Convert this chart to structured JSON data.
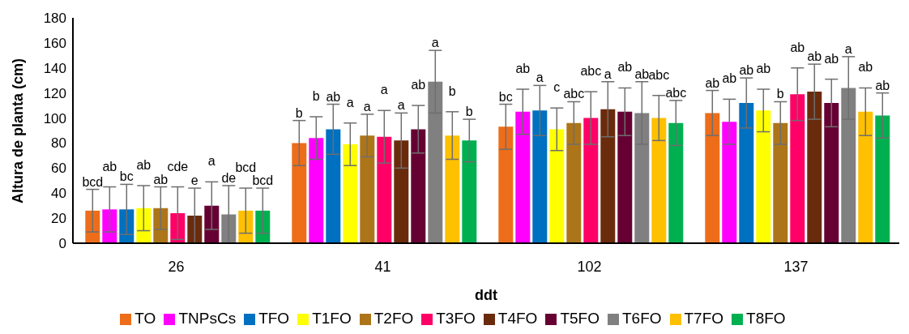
{
  "chart_data": {
    "type": "bar",
    "xlabel": "ddt",
    "ylabel": "Altura de planta (cm)",
    "categories": [
      "26",
      "41",
      "102",
      "137"
    ],
    "ylim": [
      0,
      180
    ],
    "yticks": [
      0,
      20,
      40,
      60,
      80,
      100,
      120,
      140,
      160,
      180
    ],
    "grid": false,
    "legend": "bottom",
    "series": [
      {
        "name": "TO",
        "color": "#ed6d1a",
        "values": [
          26,
          80,
          93,
          104
        ],
        "errors": [
          17,
          18,
          18,
          18
        ],
        "value_labels": [
          "bcd",
          "b",
          "bc",
          "ab"
        ]
      },
      {
        "name": "TNPsCs",
        "color": "#ff00ff",
        "values": [
          27,
          84,
          105,
          97
        ],
        "errors": [
          18,
          17,
          18,
          18
        ],
        "value_labels": [
          "ab",
          "b",
          "ab",
          "ab"
        ]
      },
      {
        "name": "TFO",
        "color": "#0070c0",
        "values": [
          27,
          91,
          106,
          112
        ],
        "errors": [
          20,
          20,
          20,
          20
        ],
        "value_labels": [
          "bc",
          "ab",
          "a",
          "ab"
        ]
      },
      {
        "name": "T1FO",
        "color": "#ffff00",
        "values": [
          28,
          79,
          91,
          106
        ],
        "errors": [
          18,
          17,
          17,
          17
        ],
        "value_labels": [
          "ab",
          "a",
          "c",
          "ab"
        ]
      },
      {
        "name": "T2FO",
        "color": "#ad7519",
        "values": [
          28,
          86,
          96,
          96
        ],
        "errors": [
          17,
          17,
          17,
          17
        ],
        "value_labels": [
          "ab",
          "a",
          "abc",
          "b"
        ]
      },
      {
        "name": "T3FO",
        "color": "#ff0066",
        "values": [
          24,
          85,
          100,
          119
        ],
        "errors": [
          21,
          21,
          21,
          21
        ],
        "value_labels": [
          "cde",
          "a",
          "abc",
          "ab"
        ]
      },
      {
        "name": "T4FO",
        "color": "#6a2b0d",
        "values": [
          22,
          82,
          107,
          121
        ],
        "errors": [
          22,
          22,
          22,
          22
        ],
        "value_labels": [
          "e",
          "a",
          "a",
          "ab"
        ]
      },
      {
        "name": "T5FO",
        "color": "#660033",
        "values": [
          30,
          91,
          105,
          112
        ],
        "errors": [
          19,
          19,
          19,
          19
        ],
        "value_labels": [
          "a",
          "ab",
          "ab",
          "ab"
        ]
      },
      {
        "name": "T6FO",
        "color": "#808080",
        "values": [
          23,
          129,
          104,
          124
        ],
        "errors": [
          23,
          25,
          25,
          25
        ],
        "value_labels": [
          "de",
          "a",
          "ab",
          "a"
        ]
      },
      {
        "name": "T7FO",
        "color": "#ffc000",
        "values": [
          26,
          86,
          100,
          105
        ],
        "errors": [
          18,
          19,
          18,
          19
        ],
        "value_labels": [
          "bcd",
          "b",
          "abc",
          "ab"
        ]
      },
      {
        "name": "T8FO",
        "color": "#00b050",
        "values": [
          26,
          82,
          96,
          102
        ],
        "errors": [
          18,
          17,
          18,
          18
        ],
        "value_labels": [
          "bcd",
          "b",
          "abc",
          "ab"
        ]
      }
    ]
  }
}
